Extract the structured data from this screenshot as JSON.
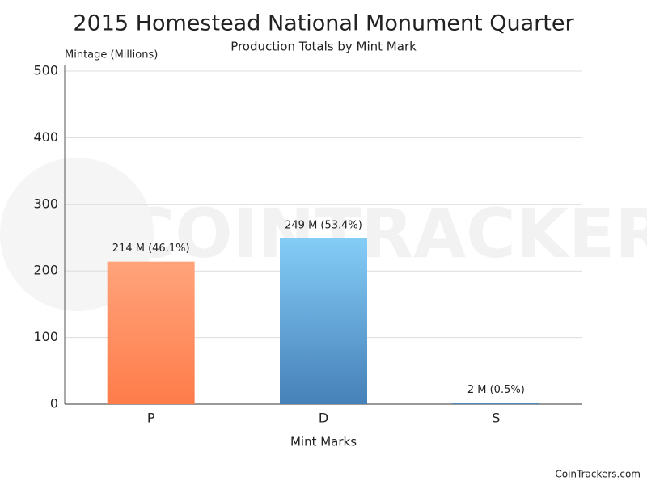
{
  "chart_data": {
    "type": "bar",
    "title": "2015 Homestead National Monument Quarter",
    "subtitle": "Production Totals by Mint Mark",
    "y_label": "Mintage (Millions)",
    "x_label": "Mint Marks",
    "categories": [
      "P",
      "D",
      "S"
    ],
    "values": [
      214,
      249,
      2
    ],
    "value_labels": [
      "214 M (46.1%)",
      "249 M (53.4%)",
      "2 M (0.5%)"
    ],
    "colors": [
      [
        "#ffa37b",
        "#ff7c4a"
      ],
      [
        "#84cdf7",
        "#4680b8"
      ],
      [
        "#5aa0d8",
        "#4680b8"
      ]
    ],
    "ylim": [
      0,
      500
    ],
    "yticks": [
      0,
      100,
      200,
      300,
      400,
      500
    ],
    "grid": true,
    "watermark": "COINTRACKERS",
    "credit": "CoinTrackers.com"
  }
}
